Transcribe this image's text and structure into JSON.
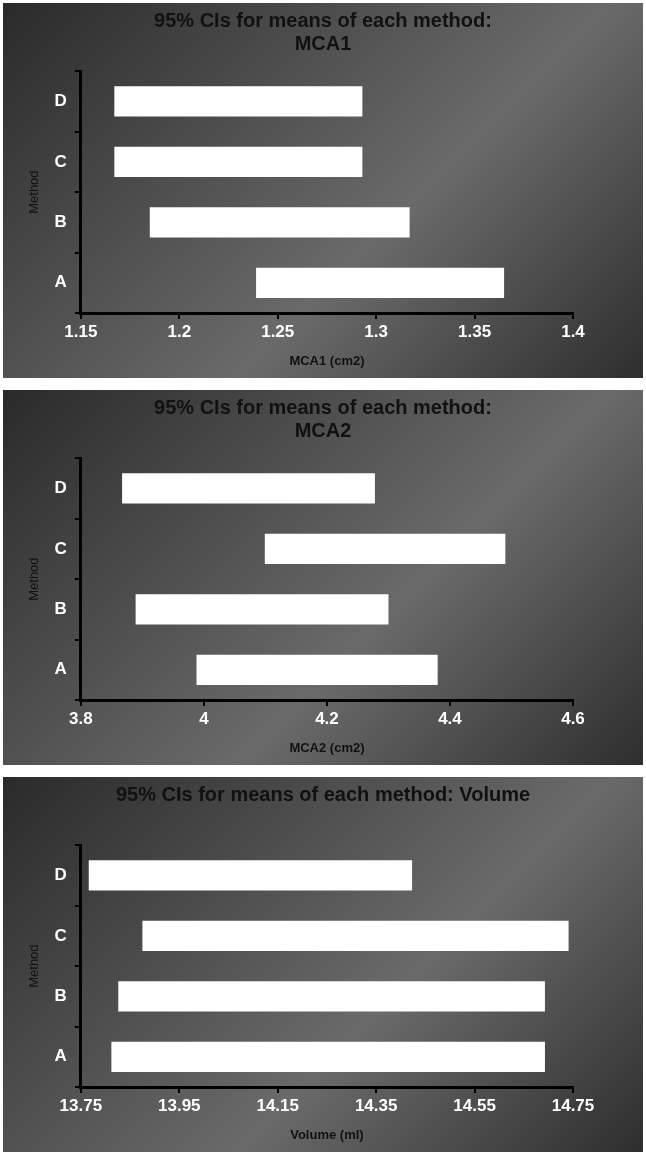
{
  "chart_data": [
    {
      "type": "bar",
      "orientation": "horizontal",
      "title": "95% CIs for means of each method: MCA1",
      "xlabel": "MCA1 (cm2)",
      "ylabel": "Method",
      "categories": [
        "D",
        "C",
        "B",
        "A"
      ],
      "base": [
        1.167,
        1.167,
        1.185,
        1.239
      ],
      "values": [
        0.126,
        0.126,
        0.132,
        0.126
      ],
      "color": "#ffffff",
      "xlim": [
        1.15,
        1.4
      ],
      "xticks": [
        1.15,
        1.2,
        1.25,
        1.3,
        1.35,
        1.4
      ],
      "grid": false,
      "legend": false
    },
    {
      "type": "bar",
      "orientation": "horizontal",
      "title": "95% CIs for means of each method: MCA2",
      "xlabel": "MCA2 (cm2)",
      "ylabel": "Method",
      "categories": [
        "D",
        "C",
        "B",
        "A"
      ],
      "base": [
        3.867,
        4.099,
        3.889,
        3.988
      ],
      "values": [
        0.411,
        0.391,
        0.411,
        0.392
      ],
      "color": "#ffffff",
      "xlim": [
        3.8,
        4.6
      ],
      "xticks": [
        3.8,
        4,
        4.2,
        4.4,
        4.6
      ],
      "grid": false,
      "legend": false
    },
    {
      "type": "bar",
      "orientation": "horizontal",
      "title": "95% CIs for means of each method: Volume",
      "xlabel": "Volume (ml)",
      "ylabel": "Method",
      "categories": [
        "D",
        "C",
        "B",
        "A"
      ],
      "base": [
        13.766,
        13.875,
        13.826,
        13.812
      ],
      "values": [
        0.657,
        0.866,
        0.867,
        0.881
      ],
      "color": "#ffffff",
      "xlim": [
        13.75,
        14.75
      ],
      "xticks": [
        13.75,
        13.95,
        14.15,
        14.35,
        14.55,
        14.75
      ],
      "grid": false,
      "legend": false
    }
  ]
}
